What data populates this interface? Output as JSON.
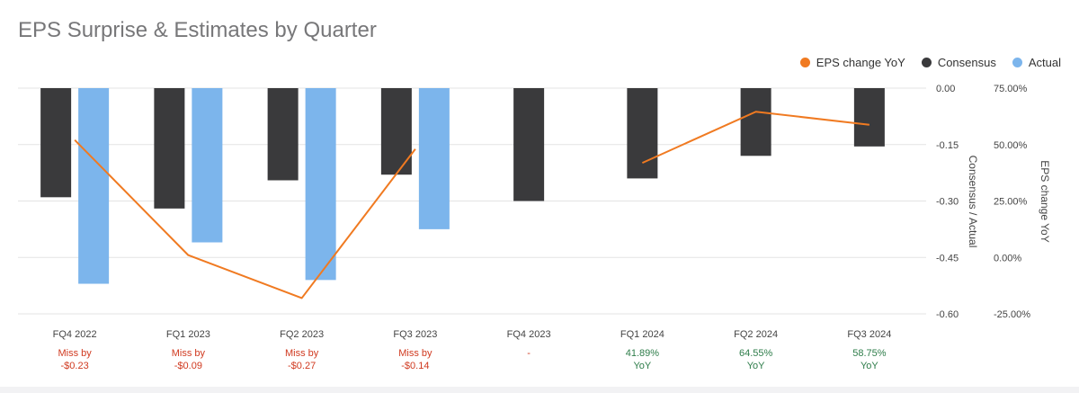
{
  "title": "EPS Surprise & Estimates by Quarter",
  "legend": [
    {
      "name": "EPS change YoY",
      "color": "#f07a21"
    },
    {
      "name": "Consensus",
      "color": "#3a3a3c"
    },
    {
      "name": "Actual",
      "color": "#7cb5ec"
    }
  ],
  "chart_data": {
    "type": "bar",
    "categories": [
      "FQ4 2022",
      "FQ1 2023",
      "FQ2 2023",
      "FQ3 2023",
      "FQ4 2023",
      "FQ1 2024",
      "FQ2 2024",
      "FQ3 2024"
    ],
    "series": [
      {
        "name": "Consensus",
        "axis": "left",
        "values": [
          -0.29,
          -0.32,
          -0.245,
          -0.23,
          -0.3,
          -0.24,
          -0.18,
          -0.155
        ],
        "color": "#3a3a3c"
      },
      {
        "name": "Actual",
        "axis": "left",
        "values": [
          -0.52,
          -0.41,
          -0.51,
          -0.375,
          null,
          null,
          null,
          null
        ],
        "color": "#7cb5ec"
      },
      {
        "name": "EPS change YoY",
        "axis": "right",
        "type": "line",
        "values": [
          52.0,
          1.0,
          -18.0,
          48.0,
          null,
          41.89,
          64.55,
          58.75
        ],
        "color": "#f07a21"
      }
    ],
    "left_axis": {
      "label": "Consensus / Actual",
      "ylim": [
        -0.6,
        0.0
      ],
      "ticks": [
        "0.00",
        "-0.15",
        "-0.30",
        "-0.45",
        "-0.60"
      ]
    },
    "right_axis": {
      "label": "EPS change YoY",
      "ylim": [
        -25,
        75
      ],
      "ticks": [
        "75.00%",
        "50.00%",
        "25.00%",
        "0.00%",
        "-25.00%"
      ]
    },
    "grid": true,
    "legend_position": "top-right",
    "surprise_labels": [
      {
        "line1": "Miss by",
        "line2": "-$0.23",
        "status": "miss"
      },
      {
        "line1": "Miss by",
        "line2": "-$0.09",
        "status": "miss"
      },
      {
        "line1": "Miss by",
        "line2": "-$0.27",
        "status": "miss"
      },
      {
        "line1": "Miss by",
        "line2": "-$0.14",
        "status": "miss"
      },
      {
        "line1": "-",
        "line2": "",
        "status": "miss"
      },
      {
        "line1": "41.89%",
        "line2": "YoY",
        "status": "yoy"
      },
      {
        "line1": "64.55%",
        "line2": "YoY",
        "status": "yoy"
      },
      {
        "line1": "58.75%",
        "line2": "YoY",
        "status": "yoy"
      }
    ],
    "status_colors": {
      "miss": "#d0391f",
      "yoy": "#2e7d4a"
    }
  }
}
